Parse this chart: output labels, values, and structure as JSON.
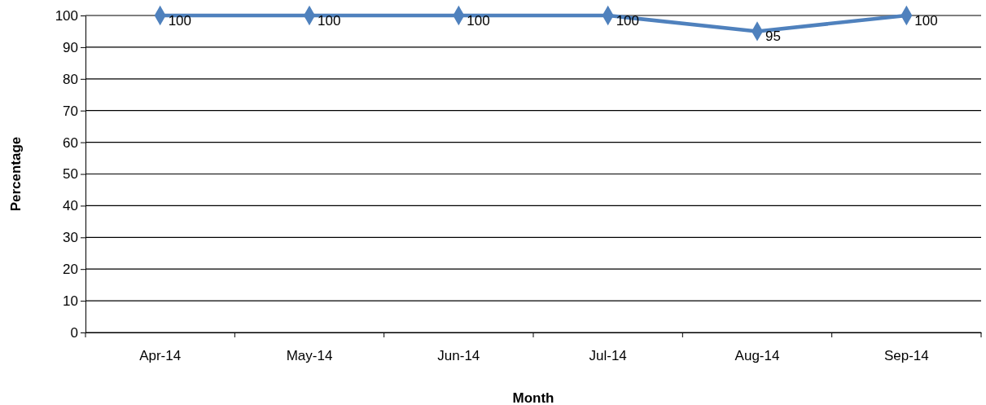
{
  "chart_data": {
    "type": "line",
    "xlabel": "Month",
    "ylabel": "Percentage",
    "categories": [
      "Apr-14",
      "May-14",
      "Jun-14",
      "Jul-14",
      "Aug-14",
      "Sep-14"
    ],
    "series": [
      {
        "color": "#4f81bd",
        "values": [
          100,
          100,
          100,
          100,
          95,
          100
        ]
      }
    ],
    "ylim": [
      0,
      100
    ],
    "yticks": [
      0,
      10,
      20,
      30,
      40,
      50,
      60,
      70,
      80,
      90,
      100
    ],
    "grid": "y",
    "marker": "diamond",
    "line_style": "solid",
    "data_labels": true
  }
}
